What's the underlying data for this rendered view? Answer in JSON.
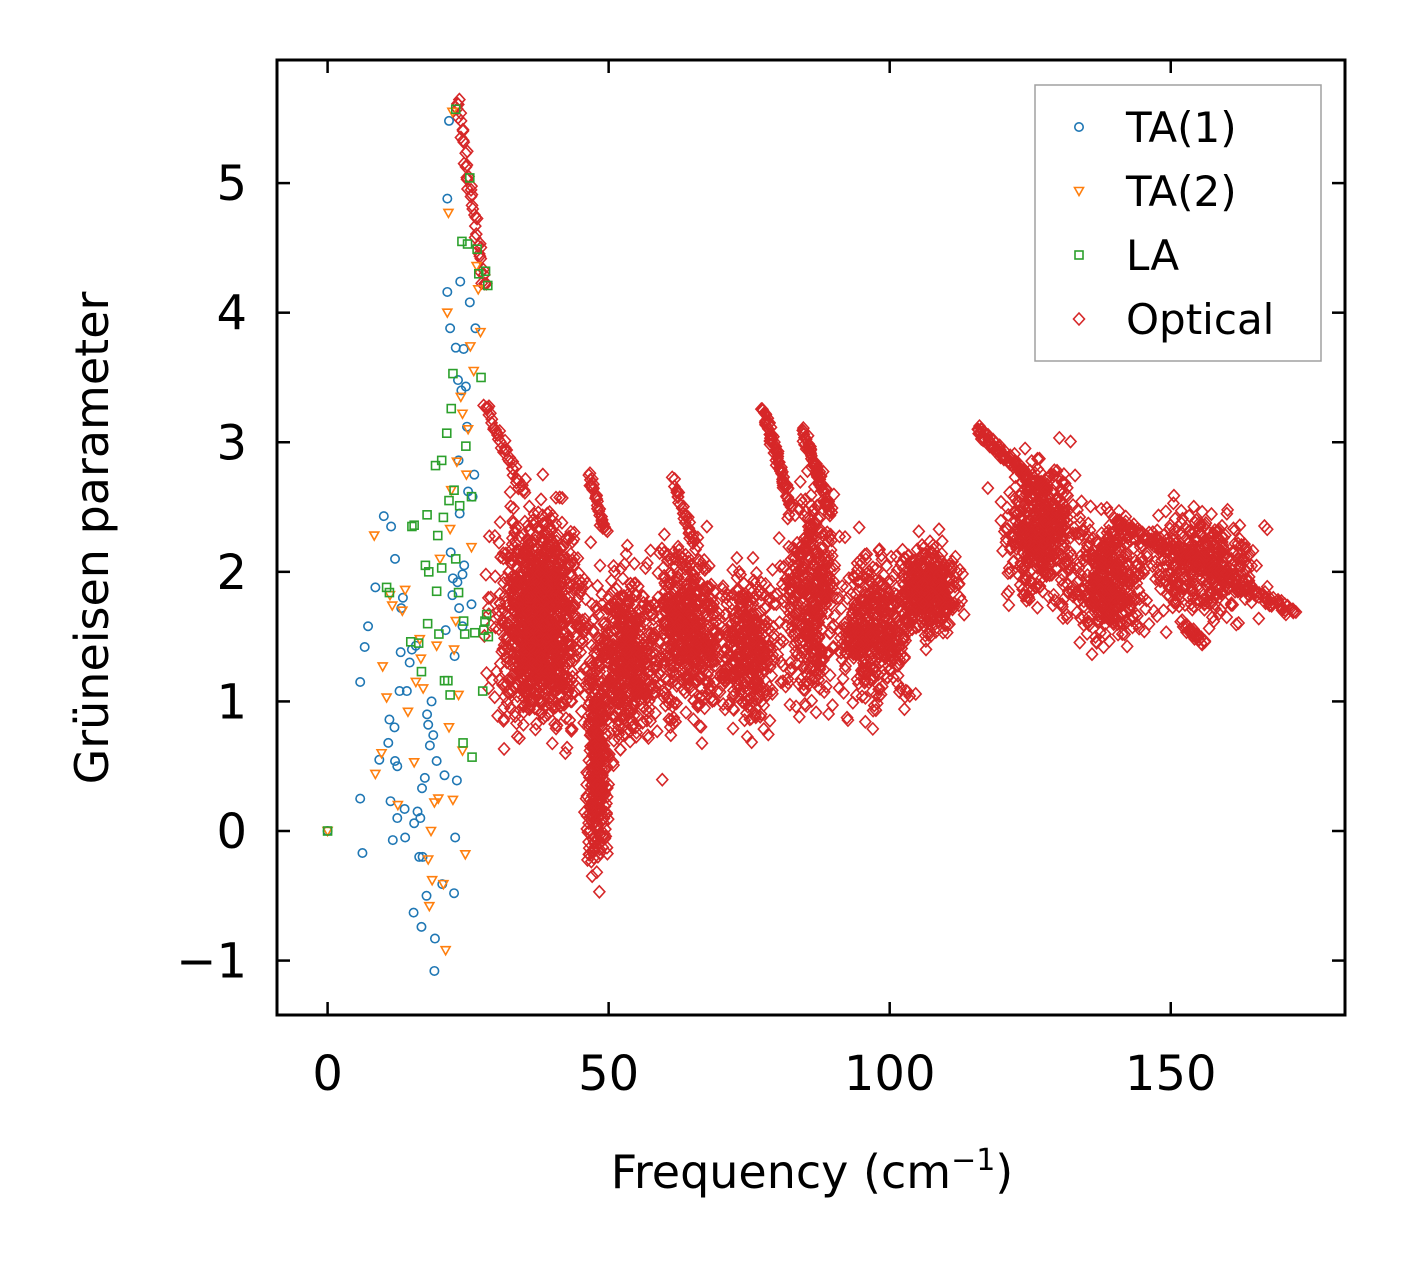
{
  "chart_data": {
    "type": "scatter",
    "title": "",
    "xlabel": "Frequency (cm",
    "xlabel_sup": "−1",
    "xlabel_suffix": ")",
    "ylabel": "Grüneisen parameter",
    "xlim": [
      -9,
      181
    ],
    "ylim": [
      -1.42,
      5.95
    ],
    "xticks": [
      0,
      50,
      100,
      150
    ],
    "xtick_labels": [
      "0",
      "50",
      "100",
      "150"
    ],
    "yticks": [
      -1,
      0,
      1,
      2,
      3,
      4,
      5
    ],
    "ytick_labels": [
      "−1",
      "0",
      "1",
      "2",
      "3",
      "4",
      "5"
    ],
    "grid": false,
    "legend_position": "top-right",
    "series": [
      {
        "name": "TA(1)",
        "marker": "circle",
        "color": "#1f77b4",
        "points": [
          [
            0,
            0
          ],
          [
            5.8,
            0.25
          ],
          [
            5.8,
            1.15
          ],
          [
            6.2,
            -0.17
          ],
          [
            6.6,
            1.42
          ],
          [
            7.2,
            1.58
          ],
          [
            8.5,
            1.88
          ],
          [
            9.2,
            0.55
          ],
          [
            10,
            2.43
          ],
          [
            10.8,
            0.68
          ],
          [
            11,
            0.86
          ],
          [
            11.2,
            0.23
          ],
          [
            11.3,
            2.35
          ],
          [
            11.6,
            -0.07
          ],
          [
            11.9,
            0.8
          ],
          [
            12,
            2.1
          ],
          [
            12,
            0.54
          ],
          [
            12.4,
            0.5
          ],
          [
            12.4,
            0.1
          ],
          [
            12.8,
            1.08
          ],
          [
            13,
            1.38
          ],
          [
            13.1,
            1.72
          ],
          [
            13.4,
            1.8
          ],
          [
            13.7,
            0.17
          ],
          [
            14.1,
            1.08
          ],
          [
            14.6,
            1.3
          ],
          [
            15,
            1.4
          ],
          [
            15.3,
            -0.63
          ],
          [
            15.4,
            0.06
          ],
          [
            15.7,
            1.43
          ],
          [
            16,
            0.15
          ],
          [
            16.3,
            -0.2
          ],
          [
            16.5,
            0.1
          ],
          [
            16.7,
            -0.74
          ],
          [
            16.8,
            0.33
          ],
          [
            17.3,
            0.41
          ],
          [
            17.6,
            -0.5
          ],
          [
            17.7,
            0.9
          ],
          [
            17.9,
            0.82
          ],
          [
            18.2,
            0.66
          ],
          [
            18.5,
            1.0
          ],
          [
            18.8,
            0.74
          ],
          [
            19,
            -1.08
          ],
          [
            19.1,
            -0.83
          ],
          [
            19.4,
            0.54
          ],
          [
            20.4,
            -0.41
          ],
          [
            21.3,
            4.88
          ],
          [
            21.3,
            4.16
          ],
          [
            21.6,
            5.48
          ],
          [
            21.8,
            3.88
          ],
          [
            21.9,
            2.15
          ],
          [
            22.2,
            1.82
          ],
          [
            22.3,
            1.95
          ],
          [
            22.5,
            -0.48
          ],
          [
            22.7,
            -0.05
          ],
          [
            22.8,
            3.73
          ],
          [
            23,
            0.39
          ],
          [
            23.1,
            1.92
          ],
          [
            23.2,
            3.48
          ],
          [
            23.3,
            2.86
          ],
          [
            23.4,
            1.72
          ],
          [
            23.5,
            2.45
          ],
          [
            23.6,
            4.24
          ],
          [
            23.8,
            3.4
          ],
          [
            24,
            1.58
          ],
          [
            24,
            1.98
          ],
          [
            24.2,
            3.72
          ],
          [
            24.3,
            2.05
          ],
          [
            24.6,
            3.43
          ],
          [
            24.8,
            3.12
          ],
          [
            25,
            2.62
          ],
          [
            25.3,
            4.08
          ],
          [
            25.6,
            1.75
          ],
          [
            25.8,
            2.58
          ],
          [
            26.1,
            2.75
          ],
          [
            26.3,
            3.88
          ],
          [
            22.6,
            1.35
          ],
          [
            21,
            1.55
          ],
          [
            20.8,
            0.43
          ],
          [
            16.9,
            -0.2
          ],
          [
            13.8,
            -0.05
          ]
        ]
      },
      {
        "name": "TA(2)",
        "marker": "triangle-down",
        "color": "#ff7f0e",
        "points": [
          [
            0,
            0
          ],
          [
            8.3,
            2.28
          ],
          [
            8.5,
            0.44
          ],
          [
            9.6,
            0.6
          ],
          [
            9.8,
            1.27
          ],
          [
            10.5,
            1.03
          ],
          [
            11.1,
            1.82
          ],
          [
            11.5,
            1.74
          ],
          [
            12.5,
            0.2
          ],
          [
            13.3,
            1.7
          ],
          [
            13.8,
            1.86
          ],
          [
            14.3,
            0.92
          ],
          [
            15.4,
            0.53
          ],
          [
            15.7,
            1.15
          ],
          [
            16.4,
            1.48
          ],
          [
            16.6,
            1.33
          ],
          [
            17,
            1.1
          ],
          [
            17.9,
            -0.22
          ],
          [
            18.1,
            -0.58
          ],
          [
            18.4,
            0.0
          ],
          [
            18.6,
            -0.38
          ],
          [
            19,
            0.22
          ],
          [
            19.4,
            1.43
          ],
          [
            19.7,
            0.25
          ],
          [
            20,
            2.1
          ],
          [
            20.6,
            -0.41
          ],
          [
            21,
            -0.92
          ],
          [
            21.5,
            4.77
          ],
          [
            21.6,
            0.8
          ],
          [
            21.8,
            2.33
          ],
          [
            22.2,
            5.55
          ],
          [
            22.3,
            0.24
          ],
          [
            22.5,
            1.4
          ],
          [
            22.8,
            1.62
          ],
          [
            23,
            2.85
          ],
          [
            23.3,
            1.05
          ],
          [
            23.7,
            3.35
          ],
          [
            24,
            3.22
          ],
          [
            24,
            0.62
          ],
          [
            24.5,
            -0.18
          ],
          [
            24.7,
            2.75
          ],
          [
            25,
            3.1
          ],
          [
            25.4,
            3.74
          ],
          [
            25.6,
            2.19
          ],
          [
            26,
            3.55
          ],
          [
            26.5,
            4.36
          ],
          [
            26.8,
            4.18
          ],
          [
            27.2,
            3.85
          ],
          [
            21.3,
            4.0
          ],
          [
            22,
            2.63
          ]
        ]
      },
      {
        "name": "LA",
        "marker": "square",
        "color": "#2ca02c",
        "points": [
          [
            0,
            0
          ],
          [
            10.5,
            1.88
          ],
          [
            11,
            1.84
          ],
          [
            14.8,
            1.46
          ],
          [
            15,
            2.35
          ],
          [
            15.4,
            2.36
          ],
          [
            16.2,
            1.45
          ],
          [
            16.7,
            1.23
          ],
          [
            17.4,
            2.05
          ],
          [
            17.7,
            2.44
          ],
          [
            17.8,
            1.6
          ],
          [
            18,
            2.0
          ],
          [
            19.2,
            2.82
          ],
          [
            19.4,
            1.85
          ],
          [
            19.6,
            2.28
          ],
          [
            19.8,
            1.52
          ],
          [
            20.3,
            2.03
          ],
          [
            20.3,
            2.86
          ],
          [
            20.6,
            2.42
          ],
          [
            20.8,
            1.16
          ],
          [
            21.2,
            3.07
          ],
          [
            21.4,
            1.16
          ],
          [
            21.6,
            2.55
          ],
          [
            21.8,
            1.05
          ],
          [
            22,
            3.26
          ],
          [
            22.3,
            3.53
          ],
          [
            22.5,
            2.63
          ],
          [
            22.8,
            2.1
          ],
          [
            23.3,
            1.84
          ],
          [
            23.5,
            2.51
          ],
          [
            23.9,
            4.55
          ],
          [
            24.1,
            0.68
          ],
          [
            24.2,
            1.62
          ],
          [
            24.4,
            1.52
          ],
          [
            24.6,
            2.97
          ],
          [
            24.9,
            4.53
          ],
          [
            25.3,
            5.04
          ],
          [
            25.6,
            2.58
          ],
          [
            25.7,
            0.57
          ],
          [
            26.2,
            1.53
          ],
          [
            26.6,
            4.49
          ],
          [
            26.9,
            4.3
          ],
          [
            27.3,
            3.5
          ],
          [
            27.6,
            1.08
          ],
          [
            27.8,
            1.55
          ],
          [
            28,
            1.62
          ],
          [
            28.1,
            4.32
          ],
          [
            28.3,
            1.67
          ],
          [
            28.5,
            4.21
          ],
          [
            28.6,
            1.5
          ],
          [
            22.8,
            5.57
          ]
        ]
      },
      {
        "name": "Optical",
        "marker": "diamond",
        "color": "#d62728",
        "points": [],
        "regions": [
          {
            "cx": 37.8,
            "cy": 1.62,
            "sx": 5.2,
            "sy": 0.55,
            "n": 1150
          },
          {
            "cx": 48.0,
            "cy": 0.5,
            "sx": 1.5,
            "sy": 0.55,
            "n": 300
          },
          {
            "cx": 53.0,
            "cy": 1.35,
            "sx": 4.0,
            "sy": 0.45,
            "n": 500
          },
          {
            "cx": 64.2,
            "cy": 1.55,
            "sx": 4.0,
            "sy": 0.45,
            "n": 520
          },
          {
            "cx": 75.0,
            "cy": 1.42,
            "sx": 3.8,
            "sy": 0.4,
            "n": 380
          },
          {
            "cx": 86.0,
            "cy": 1.8,
            "sx": 3.2,
            "sy": 0.55,
            "n": 420
          },
          {
            "cx": 97.5,
            "cy": 1.55,
            "sx": 4.5,
            "sy": 0.4,
            "n": 420
          },
          {
            "cx": 107.0,
            "cy": 1.85,
            "sx": 3.8,
            "sy": 0.25,
            "n": 380
          },
          {
            "cx": 127.0,
            "cy": 2.3,
            "sx": 4.5,
            "sy": 0.35,
            "n": 460
          },
          {
            "cx": 139.0,
            "cy": 1.95,
            "sx": 4.5,
            "sy": 0.32,
            "n": 420
          },
          {
            "cx": 156.0,
            "cy": 2.05,
            "sx": 6.5,
            "sy": 0.28,
            "n": 380
          }
        ],
        "tracks": [
          {
            "from": [
              23,
              5.65
            ],
            "to": [
              28,
              4.2
            ],
            "n": 45
          },
          {
            "from": [
              28,
              3.3
            ],
            "to": [
              35,
              2.6
            ],
            "n": 40
          },
          {
            "from": [
              46.5,
              2.75
            ],
            "to": [
              49.5,
              2.3
            ],
            "n": 30
          },
          {
            "from": [
              61.5,
              2.7
            ],
            "to": [
              65.5,
              2.2
            ],
            "n": 30
          },
          {
            "from": [
              77.5,
              3.25
            ],
            "to": [
              82.5,
              2.5
            ],
            "n": 70
          },
          {
            "from": [
              84.5,
              3.1
            ],
            "to": [
              89.5,
              2.45
            ],
            "n": 70
          },
          {
            "from": [
              115.5,
              3.1
            ],
            "to": [
              128,
              2.6
            ],
            "n": 100
          },
          {
            "from": [
              140,
              2.4
            ],
            "to": [
              172,
              1.68
            ],
            "n": 160
          },
          {
            "from": [
              152,
              1.6
            ],
            "to": [
              156,
              1.45
            ],
            "n": 25
          }
        ]
      }
    ]
  },
  "legend": {
    "items": [
      "TA(1)",
      "TA(2)",
      "LA",
      "Optical"
    ]
  }
}
